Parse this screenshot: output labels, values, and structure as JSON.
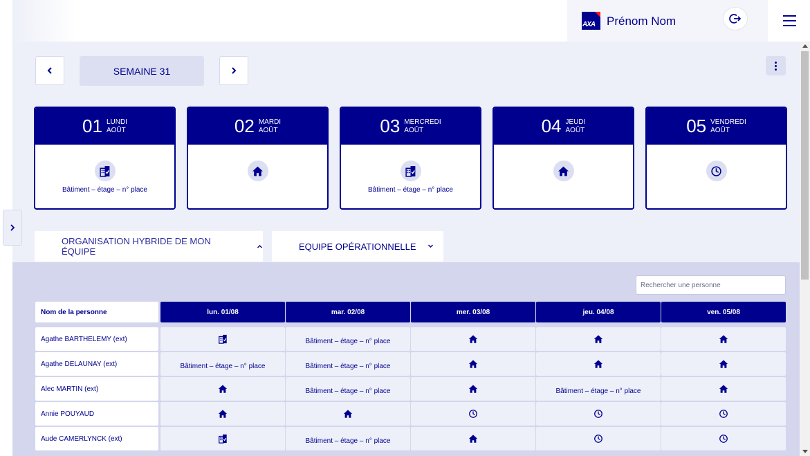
{
  "header": {
    "user_name": "Prénom Nom",
    "logo_text": "AXA",
    "logout_icon": "logout-icon",
    "menu_icon": "hamburger-icon"
  },
  "week": {
    "label": "SEMAINE 31",
    "prev_icon": "chevron-left-icon",
    "next_icon": "chevron-right-icon",
    "more_icon": "kebab-menu-icon"
  },
  "days": [
    {
      "num": "01",
      "weekday": "LUNDI",
      "month": "AOÛT",
      "icon": "office-building-icon",
      "place": "Bâtiment  – étage – n° place"
    },
    {
      "num": "02",
      "weekday": "MARDI",
      "month": "AOÛT",
      "icon": "home-icon",
      "place": ""
    },
    {
      "num": "03",
      "weekday": "MERCREDI",
      "month": "AOÛT",
      "icon": "office-building-icon",
      "place": "Bâtiment  – étage – n° place"
    },
    {
      "num": "04",
      "weekday": "JEUDI",
      "month": "AOÛT",
      "icon": "home-icon",
      "place": ""
    },
    {
      "num": "05",
      "weekday": "VENDREDI",
      "month": "AOÛT",
      "icon": "clock-icon",
      "place": ""
    }
  ],
  "tabs": {
    "team_toggle": "ORGANISATION HYBRIDE DE MON ÉQUIPE",
    "team_select": "EQUIPE OPÉRATIONNELLE"
  },
  "search": {
    "placeholder": "Rechercher une personne"
  },
  "table": {
    "name_header": "Nom de la personne",
    "day_headers": [
      "lun. 01/08",
      "mar. 02/08",
      "mer. 03/08",
      "jeu. 04/08",
      "ven. 05/08"
    ],
    "rows": [
      {
        "name": "Agathe BARTHELEMY (ext)",
        "cells": [
          {
            "type": "office"
          },
          {
            "type": "place",
            "text": "Bâtiment  – étage – n° place"
          },
          {
            "type": "home"
          },
          {
            "type": "home"
          },
          {
            "type": "home"
          }
        ]
      },
      {
        "name": "Agathe DELAUNAY (ext)",
        "cells": [
          {
            "type": "place",
            "text": "Bâtiment  – étage – n° place"
          },
          {
            "type": "place",
            "text": "Bâtiment  – étage – n° place"
          },
          {
            "type": "home"
          },
          {
            "type": "home"
          },
          {
            "type": "home"
          }
        ]
      },
      {
        "name": "Alec MARTIN (ext)",
        "cells": [
          {
            "type": "home"
          },
          {
            "type": "place",
            "text": "Bâtiment  – étage – n° place"
          },
          {
            "type": "home"
          },
          {
            "type": "place",
            "text": "Bâtiment  – étage – n° place"
          },
          {
            "type": "home"
          }
        ]
      },
      {
        "name": "Annie POUYAUD",
        "cells": [
          {
            "type": "home"
          },
          {
            "type": "home"
          },
          {
            "type": "clock"
          },
          {
            "type": "clock"
          },
          {
            "type": "clock"
          }
        ]
      },
      {
        "name": "Aude CAMERLYNCK (ext)",
        "cells": [
          {
            "type": "office"
          },
          {
            "type": "place",
            "text": "Bâtiment  – étage – n° place"
          },
          {
            "type": "home"
          },
          {
            "type": "clock"
          },
          {
            "type": "clock"
          }
        ]
      }
    ]
  },
  "colors": {
    "brand": "#00008f",
    "accent_red": "#ff1721",
    "panel": "#d4d6ee",
    "background": "#eef0f9"
  }
}
